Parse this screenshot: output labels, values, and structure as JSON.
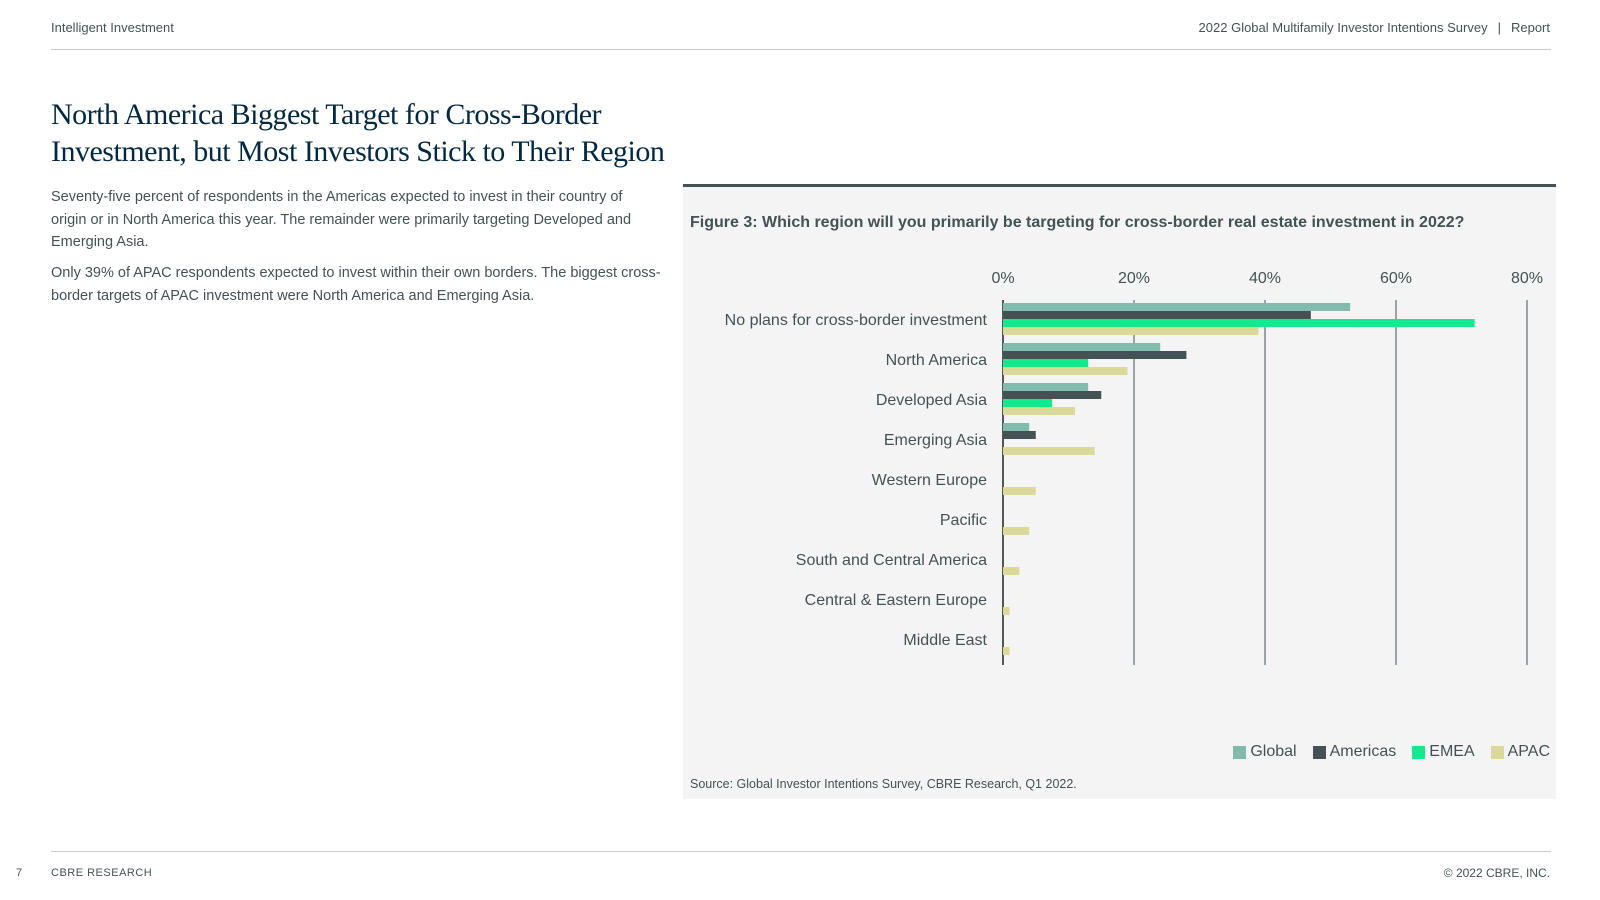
{
  "header": {
    "left": "Intelligent Investment",
    "report_title": "2022 Global Multifamily Investor Intentions Survey",
    "separator": "|",
    "report_label": "Report"
  },
  "title": "North America Biggest Target for Cross-Border Investment, but Most Investors Stick to Their Region",
  "paragraphs": [
    "Seventy-five percent of respondents in the Americas expected to invest in their country of origin or in North America this year. The remainder were primarily targeting Developed and Emerging Asia.",
    "Only 39% of APAC respondents expected to invest within their own borders. The biggest cross-border targets of APAC investment were North America and Emerging Asia."
  ],
  "figure": {
    "title": "Figure 3: Which region will you primarily be targeting for cross-border real estate investment in 2022?",
    "source": "Source: Global Investor Intentions Survey, CBRE Research, Q1 2022."
  },
  "chart_data": {
    "type": "bar",
    "orientation": "horizontal",
    "categories": [
      "No plans for cross-border investment",
      "North America",
      "Developed Asia",
      "Emerging Asia",
      "Western Europe",
      "Pacific",
      "South and Central America",
      "Central & Eastern Europe",
      "Middle East"
    ],
    "series": [
      {
        "name": "Global",
        "color": "#80bbad",
        "values": [
          53,
          24,
          13,
          4,
          0,
          0,
          0,
          0,
          0
        ]
      },
      {
        "name": "Americas",
        "color": "#435254",
        "values": [
          47,
          28,
          15,
          5,
          0,
          0,
          0,
          0,
          0
        ]
      },
      {
        "name": "EMEA",
        "color": "#17e88f",
        "values": [
          72,
          13,
          7.5,
          0,
          0,
          0,
          0,
          0,
          0
        ]
      },
      {
        "name": "APAC",
        "color": "#dbd99a",
        "values": [
          39,
          19,
          11,
          14,
          5,
          4,
          2.5,
          1,
          1
        ]
      }
    ],
    "xticks": [
      "0%",
      "20%",
      "40%",
      "60%",
      "80%"
    ],
    "xlim": [
      0,
      80
    ],
    "legend_position": "bottom-right"
  },
  "footer": {
    "page": "7",
    "left": "CBRE RESEARCH",
    "right": "© 2022 CBRE, INC."
  }
}
